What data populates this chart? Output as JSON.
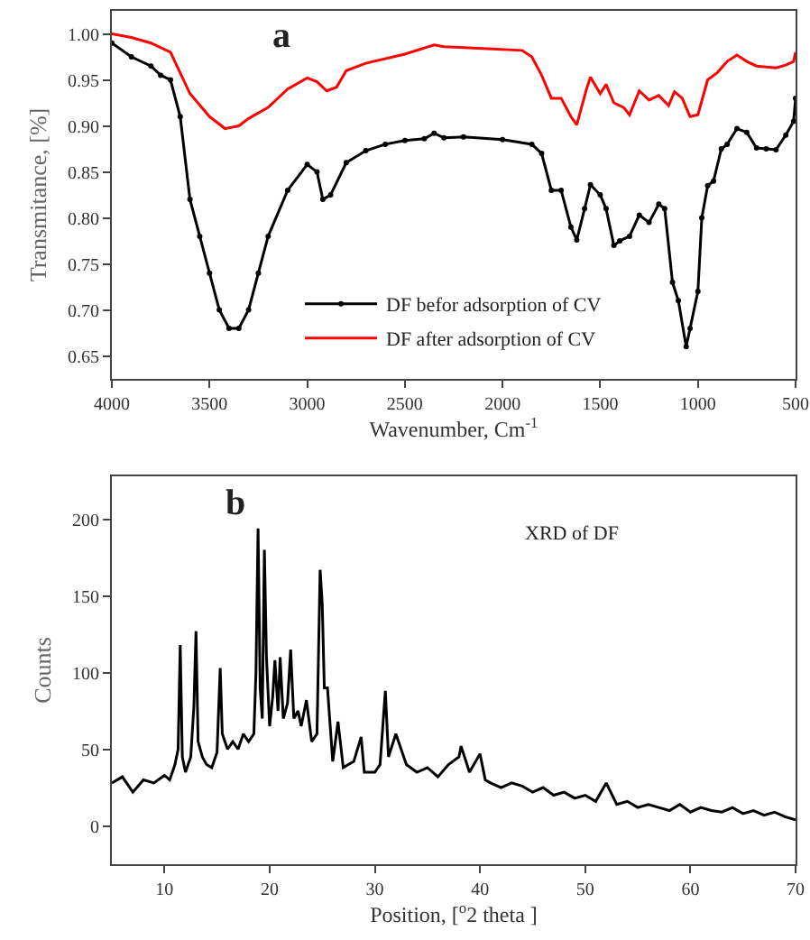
{
  "chart_data": [
    {
      "type": "line",
      "xlabel": "Wavenumber, Cm$^{-1}$",
      "ylabel": "Transmitance, [%]",
      "annotations": [
        "a"
      ],
      "xlim": [
        4000,
        500
      ],
      "xticks": [
        4000,
        3500,
        3000,
        2500,
        2000,
        1500,
        1000,
        500
      ],
      "ylim": [
        0.625,
        1.025
      ],
      "yticks": [
        {
          "value": 0.65,
          "label": "0.65"
        },
        {
          "value": 0.7,
          "label": "0.70"
        },
        {
          "value": 0.75,
          "label": "0.75"
        },
        {
          "value": 0.8,
          "label": "0.80"
        },
        {
          "value": 0.85,
          "label": "0.85"
        },
        {
          "value": 0.9,
          "label": "0.90"
        },
        {
          "value": 0.95,
          "label": "0.95"
        },
        {
          "value": 1,
          "label": "1.00"
        }
      ],
      "grid": false,
      "legend": "bottom",
      "series": [
        {
          "name": "DF befor adsorption of CV",
          "color": "#000000",
          "marker": "circle",
          "x": [
            4000,
            3900,
            3800,
            3750,
            3700,
            3650,
            3600,
            3550,
            3500,
            3450,
            3400,
            3350,
            3300,
            3250,
            3200,
            3100,
            3000,
            2950,
            2920,
            2880,
            2800,
            2700,
            2600,
            2500,
            2400,
            2350,
            2300,
            2200,
            2000,
            1850,
            1800,
            1750,
            1700,
            1650,
            1620,
            1580,
            1550,
            1500,
            1470,
            1430,
            1400,
            1350,
            1300,
            1250,
            1200,
            1170,
            1130,
            1100,
            1060,
            1040,
            1000,
            980,
            950,
            920,
            880,
            850,
            800,
            750,
            700,
            650,
            600,
            550,
            510,
            500
          ],
          "values": [
            0.99,
            0.975,
            0.965,
            0.955,
            0.95,
            0.91,
            0.82,
            0.78,
            0.74,
            0.7,
            0.68,
            0.68,
            0.7,
            0.74,
            0.78,
            0.83,
            0.858,
            0.85,
            0.82,
            0.825,
            0.86,
            0.873,
            0.88,
            0.884,
            0.886,
            0.892,
            0.887,
            0.888,
            0.885,
            0.88,
            0.87,
            0.83,
            0.83,
            0.79,
            0.776,
            0.81,
            0.836,
            0.825,
            0.81,
            0.77,
            0.775,
            0.78,
            0.803,
            0.795,
            0.815,
            0.81,
            0.73,
            0.71,
            0.66,
            0.68,
            0.72,
            0.8,
            0.835,
            0.84,
            0.875,
            0.88,
            0.897,
            0.893,
            0.876,
            0.875,
            0.874,
            0.89,
            0.905,
            0.93
          ]
        },
        {
          "name": "DF after adsorption of CV",
          "color": "#ff0000",
          "x": [
            4000,
            3900,
            3800,
            3700,
            3600,
            3500,
            3420,
            3350,
            3300,
            3200,
            3100,
            3000,
            2950,
            2900,
            2850,
            2800,
            2700,
            2500,
            2350,
            2300,
            2100,
            1900,
            1850,
            1800,
            1750,
            1700,
            1650,
            1620,
            1570,
            1550,
            1500,
            1470,
            1430,
            1380,
            1350,
            1300,
            1250,
            1200,
            1150,
            1120,
            1080,
            1040,
            1000,
            950,
            900,
            850,
            800,
            750,
            700,
            600,
            550,
            510,
            500
          ],
          "values": [
            1.0,
            0.996,
            0.99,
            0.98,
            0.935,
            0.91,
            0.897,
            0.9,
            0.908,
            0.92,
            0.94,
            0.952,
            0.948,
            0.938,
            0.942,
            0.96,
            0.968,
            0.978,
            0.988,
            0.986,
            0.984,
            0.982,
            0.975,
            0.955,
            0.93,
            0.93,
            0.91,
            0.901,
            0.94,
            0.953,
            0.935,
            0.945,
            0.925,
            0.92,
            0.912,
            0.938,
            0.928,
            0.933,
            0.922,
            0.937,
            0.93,
            0.91,
            0.912,
            0.95,
            0.958,
            0.97,
            0.977,
            0.97,
            0.965,
            0.963,
            0.966,
            0.97,
            0.98
          ]
        }
      ]
    },
    {
      "type": "line",
      "xlabel": "Position, [$^{o}$2 theta ]",
      "ylabel": "Counts",
      "annotations": [
        "b",
        "XRD of DF"
      ],
      "xlim": [
        5,
        70
      ],
      "xticks": [
        10,
        20,
        30,
        40,
        50,
        60,
        70
      ],
      "ylim": [
        -25,
        228
      ],
      "yticks": [
        0,
        50,
        100,
        150,
        200
      ],
      "grid": false,
      "series": [
        {
          "color": "#000000",
          "x": [
            5,
            6,
            7,
            8,
            9,
            10,
            10.5,
            11,
            11.3,
            11.5,
            11.7,
            12,
            12.5,
            12.8,
            13,
            13.2,
            13.6,
            14,
            14.5,
            15,
            15.3,
            15.5,
            16,
            16.5,
            17,
            17.5,
            18,
            18.5,
            18.7,
            18.9,
            19.1,
            19.3,
            19.5,
            19.7,
            20,
            20.3,
            20.5,
            20.8,
            21,
            21.3,
            21.7,
            22,
            22.3,
            22.7,
            23,
            23.5,
            24,
            24.5,
            24.8,
            25,
            25.2,
            25.5,
            26,
            26.5,
            27,
            28,
            28.7,
            29,
            30,
            30.5,
            31,
            31.3,
            32,
            33,
            34,
            35,
            36,
            37,
            38,
            38.2,
            39,
            40,
            40.5,
            41,
            42,
            43,
            44,
            45,
            46,
            47,
            48,
            49,
            50,
            51,
            52,
            53,
            54,
            55,
            56,
            57,
            58,
            59,
            60,
            61,
            62,
            63,
            64,
            65,
            66,
            67,
            68,
            69,
            70
          ],
          "values": [
            28,
            32,
            22,
            30,
            28,
            33,
            30,
            40,
            50,
            118,
            45,
            35,
            45,
            78,
            127,
            55,
            45,
            40,
            38,
            48,
            103,
            60,
            50,
            55,
            50,
            60,
            55,
            60,
            100,
            194,
            90,
            70,
            180,
            110,
            65,
            85,
            108,
            75,
            110,
            70,
            80,
            115,
            70,
            75,
            65,
            82,
            55,
            60,
            167,
            145,
            90,
            90,
            42,
            68,
            38,
            42,
            58,
            35,
            35,
            40,
            88,
            45,
            60,
            40,
            35,
            38,
            32,
            40,
            45,
            52,
            35,
            47,
            30,
            28,
            25,
            28,
            26,
            22,
            25,
            20,
            22,
            18,
            20,
            16,
            28,
            14,
            16,
            12,
            14,
            12,
            10,
            14,
            9,
            12,
            10,
            9,
            12,
            8,
            10,
            7,
            9,
            6,
            4
          ]
        }
      ]
    }
  ]
}
